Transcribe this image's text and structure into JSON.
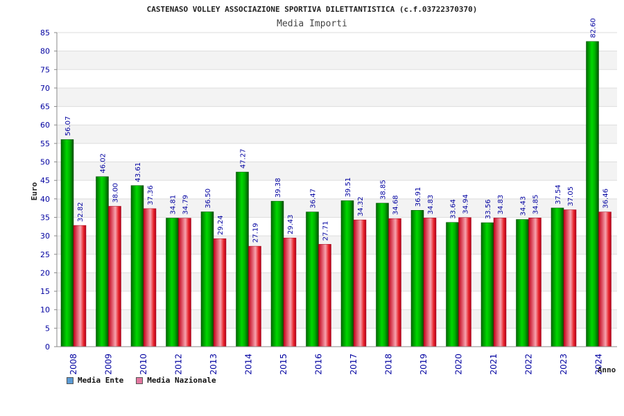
{
  "chart_data": {
    "type": "bar",
    "title": "CASTENASO VOLLEY ASSOCIAZIONE SPORTIVA DILETTANTISTICA (c.f.03722370370)",
    "subtitle": "Media Importi",
    "ylabel": "Euro",
    "xlabel": "Anno",
    "ylim": [
      0,
      85
    ],
    "ytick_step": 5,
    "grid": true,
    "legend_position": "bottom-left",
    "categories": [
      "2008",
      "2009",
      "2010",
      "2012",
      "2013",
      "2014",
      "2015",
      "2016",
      "2017",
      "2018",
      "2019",
      "2020",
      "2021",
      "2022",
      "2023",
      "2024"
    ],
    "series": [
      {
        "name": "Media Ente",
        "legend_color": "#5b9bd5",
        "bar_color": "#00c000",
        "values": [
          56.07,
          46.02,
          43.61,
          34.81,
          36.5,
          47.27,
          39.38,
          36.47,
          39.51,
          38.85,
          36.91,
          33.64,
          33.56,
          34.43,
          37.54,
          82.6
        ],
        "labels": [
          "56.07",
          "46.02",
          "43.61",
          "34.81",
          "36.50",
          "47.27",
          "39.38",
          "36.47",
          "39.51",
          "38.85",
          "36.91",
          "33.64",
          "33.56",
          "34.43",
          "37.54",
          "82.60"
        ]
      },
      {
        "name": "Media Nazionale",
        "legend_color": "#e377a0",
        "bar_color": "#e8242c",
        "values": [
          32.82,
          38.0,
          37.36,
          34.79,
          29.24,
          27.19,
          29.43,
          27.71,
          34.32,
          34.68,
          34.83,
          34.94,
          34.83,
          34.85,
          37.05,
          36.46
        ],
        "labels": [
          "32.82",
          "38.00",
          "37.36",
          "34.79",
          "29.24",
          "27.19",
          "29.43",
          "27.71",
          "34.32",
          "34.68",
          "34.83",
          "34.94",
          "34.83",
          "34.85",
          "37.05",
          "36.46"
        ]
      }
    ]
  }
}
